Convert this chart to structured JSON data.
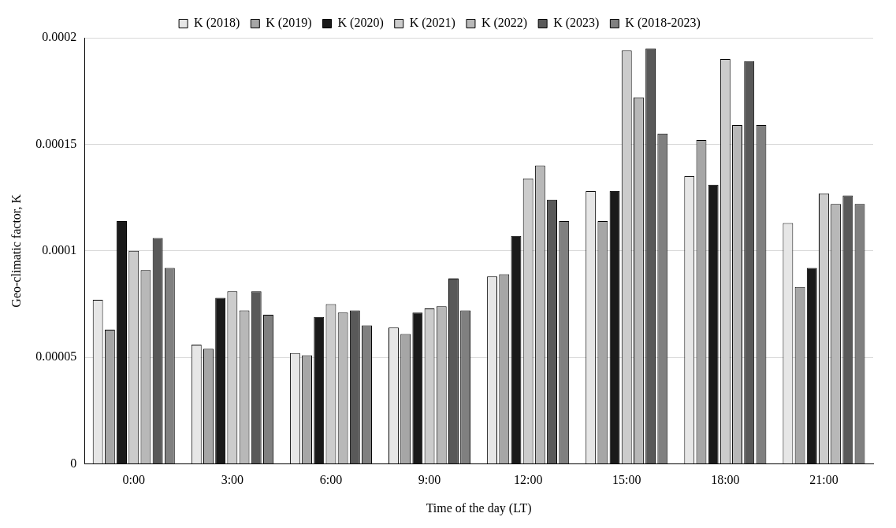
{
  "chart_data": {
    "type": "bar",
    "xlabel": "Time of the day (LT)",
    "ylabel": "Geo-climatic factor, K",
    "categories": [
      "0:00",
      "3:00",
      "6:00",
      "9:00",
      "12:00",
      "15:00",
      "18:00",
      "21:00"
    ],
    "series": [
      {
        "name": "K (2018)",
        "color": "#e6e6e6",
        "values": [
          7.7e-05,
          5.6e-05,
          5.2e-05,
          6.4e-05,
          8.8e-05,
          0.000128,
          0.000135,
          0.000113
        ]
      },
      {
        "name": "K (2019)",
        "color": "#a6a6a6",
        "values": [
          6.3e-05,
          5.4e-05,
          5.1e-05,
          6.1e-05,
          8.9e-05,
          0.000114,
          0.000152,
          8.3e-05
        ]
      },
      {
        "name": "K (2020)",
        "color": "#1a1a1a",
        "values": [
          0.000114,
          7.8e-05,
          6.9e-05,
          7.1e-05,
          0.000107,
          0.000128,
          0.000131,
          9.2e-05
        ]
      },
      {
        "name": "K (2021)",
        "color": "#cccccc",
        "values": [
          0.0001,
          8.1e-05,
          7.5e-05,
          7.3e-05,
          0.000134,
          0.000194,
          0.00019,
          0.000127
        ]
      },
      {
        "name": "K (2022)",
        "color": "#b8b8b8",
        "values": [
          9.1e-05,
          7.2e-05,
          7.1e-05,
          7.4e-05,
          0.00014,
          0.000172,
          0.000159,
          0.000122
        ]
      },
      {
        "name": "K (2023)",
        "color": "#595959",
        "values": [
          0.000106,
          8.1e-05,
          7.2e-05,
          8.7e-05,
          0.000124,
          0.000195,
          0.000189,
          0.000126
        ]
      },
      {
        "name": "K (2018-2023)",
        "color": "#808080",
        "values": [
          9.2e-05,
          7e-05,
          6.5e-05,
          7.2e-05,
          0.000114,
          0.000155,
          0.000159,
          0.000122
        ]
      }
    ],
    "ylim": [
      0,
      0.0002
    ],
    "yticks": [
      0,
      {
        "value": 5e-05,
        "label": "0.00005"
      },
      0.0001,
      0.00015,
      0.0002
    ],
    "grid": "y",
    "legend": "top"
  }
}
